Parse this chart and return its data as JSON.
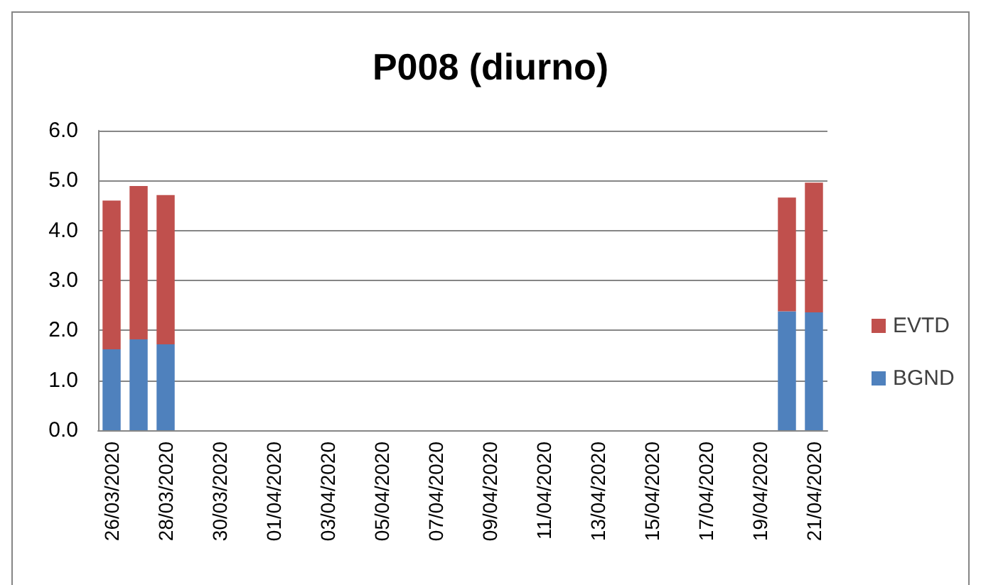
{
  "chart_data": {
    "type": "bar",
    "title": "P008 (diurno)",
    "categories": [
      "26/03/2020",
      null,
      "28/03/2020",
      null,
      "30/03/2020",
      null,
      "01/04/2020",
      null,
      "03/04/2020",
      null,
      "05/04/2020",
      null,
      "07/04/2020",
      null,
      "09/04/2020",
      null,
      "11/04/2020",
      null,
      "13/04/2020",
      null,
      "15/04/2020",
      null,
      "17/04/2020",
      null,
      "19/04/2020",
      null,
      "21/04/2020"
    ],
    "series": [
      {
        "name": "BGND",
        "color": "#4f81bd",
        "values": [
          1.62,
          1.82,
          1.72,
          null,
          null,
          null,
          null,
          null,
          null,
          null,
          null,
          null,
          null,
          null,
          null,
          null,
          null,
          null,
          null,
          null,
          null,
          null,
          null,
          null,
          null,
          2.38,
          2.36
        ]
      },
      {
        "name": "EVTD",
        "color": "#c0504d",
        "values": [
          2.98,
          3.07,
          2.99,
          null,
          null,
          null,
          null,
          null,
          null,
          null,
          null,
          null,
          null,
          null,
          null,
          null,
          null,
          null,
          null,
          null,
          null,
          null,
          null,
          null,
          null,
          2.28,
          2.6
        ]
      }
    ],
    "stacked": true,
    "ylim": [
      0,
      6
    ],
    "yticks": [
      {
        "value": 0,
        "label": "0.0"
      },
      {
        "value": 1,
        "label": "1.0"
      },
      {
        "value": 2,
        "label": "2.0"
      },
      {
        "value": 3,
        "label": "3.0"
      },
      {
        "value": 4,
        "label": "4.0"
      },
      {
        "value": 5,
        "label": "5.0"
      },
      {
        "value": 6,
        "label": "6.0"
      }
    ],
    "grid": "y",
    "legend": "right"
  }
}
